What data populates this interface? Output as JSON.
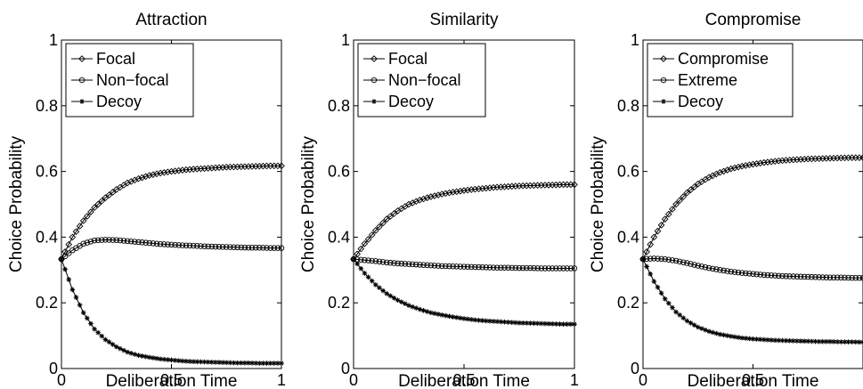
{
  "chart_data": [
    {
      "type": "line",
      "title": "Attraction",
      "xlabel": "Deliberation Time",
      "ylabel": "Choice Probability",
      "xlim": [
        0,
        1
      ],
      "ylim": [
        0,
        1
      ],
      "xticks": [
        "0",
        "0.5",
        "1"
      ],
      "yticks": [
        "0",
        "0.2",
        "0.4",
        "0.6",
        "0.8",
        "1"
      ],
      "legend_position": "top-left",
      "series": [
        {
          "name": "Focal",
          "marker": "diamond",
          "x": [
            0,
            0.05,
            0.1,
            0.15,
            0.2,
            0.25,
            0.3,
            0.35,
            0.4,
            0.45,
            0.5,
            0.55,
            0.6,
            0.65,
            0.7,
            0.75,
            0.8,
            0.85,
            0.9,
            0.95,
            1
          ],
          "y": [
            0.333,
            0.4,
            0.45,
            0.49,
            0.52,
            0.545,
            0.565,
            0.578,
            0.588,
            0.595,
            0.6,
            0.604,
            0.607,
            0.609,
            0.611,
            0.613,
            0.614,
            0.615,
            0.616,
            0.617,
            0.617
          ]
        },
        {
          "name": "Non−focal",
          "marker": "circle",
          "x": [
            0,
            0.05,
            0.1,
            0.15,
            0.2,
            0.25,
            0.3,
            0.35,
            0.4,
            0.45,
            0.5,
            0.55,
            0.6,
            0.65,
            0.7,
            0.75,
            0.8,
            0.85,
            0.9,
            0.95,
            1
          ],
          "y": [
            0.333,
            0.36,
            0.38,
            0.39,
            0.392,
            0.391,
            0.388,
            0.385,
            0.382,
            0.379,
            0.377,
            0.375,
            0.374,
            0.372,
            0.371,
            0.37,
            0.369,
            0.368,
            0.368,
            0.367,
            0.367
          ]
        },
        {
          "name": "Decoy",
          "marker": "star",
          "x": [
            0,
            0.05,
            0.1,
            0.15,
            0.2,
            0.25,
            0.3,
            0.35,
            0.4,
            0.45,
            0.5,
            0.55,
            0.6,
            0.65,
            0.7,
            0.75,
            0.8,
            0.85,
            0.9,
            0.95,
            1
          ],
          "y": [
            0.333,
            0.24,
            0.17,
            0.12,
            0.088,
            0.066,
            0.05,
            0.04,
            0.034,
            0.029,
            0.026,
            0.023,
            0.021,
            0.02,
            0.019,
            0.018,
            0.017,
            0.017,
            0.016,
            0.016,
            0.016
          ]
        }
      ]
    },
    {
      "type": "line",
      "title": "Similarity",
      "xlabel": "Deliberation Time",
      "ylabel": "Choice Probability",
      "xlim": [
        0,
        1
      ],
      "ylim": [
        0,
        1
      ],
      "xticks": [
        "0",
        "0.5",
        "1"
      ],
      "yticks": [
        "0",
        "0.2",
        "0.4",
        "0.6",
        "0.8",
        "1"
      ],
      "legend_position": "top-left",
      "series": [
        {
          "name": "Focal",
          "marker": "diamond",
          "x": [
            0,
            0.05,
            0.1,
            0.15,
            0.2,
            0.25,
            0.3,
            0.35,
            0.4,
            0.45,
            0.5,
            0.55,
            0.6,
            0.65,
            0.7,
            0.75,
            0.8,
            0.85,
            0.9,
            0.95,
            1
          ],
          "y": [
            0.333,
            0.38,
            0.42,
            0.455,
            0.48,
            0.5,
            0.513,
            0.523,
            0.531,
            0.537,
            0.542,
            0.546,
            0.549,
            0.552,
            0.554,
            0.556,
            0.557,
            0.558,
            0.559,
            0.56,
            0.56
          ]
        },
        {
          "name": "Non−focal",
          "marker": "circle",
          "x": [
            0,
            0.05,
            0.1,
            0.15,
            0.2,
            0.25,
            0.3,
            0.35,
            0.4,
            0.45,
            0.5,
            0.55,
            0.6,
            0.65,
            0.7,
            0.75,
            0.8,
            0.85,
            0.9,
            0.95,
            1
          ],
          "y": [
            0.333,
            0.33,
            0.327,
            0.323,
            0.32,
            0.318,
            0.316,
            0.314,
            0.312,
            0.311,
            0.31,
            0.309,
            0.308,
            0.307,
            0.307,
            0.306,
            0.306,
            0.305,
            0.305,
            0.305,
            0.305
          ]
        },
        {
          "name": "Decoy",
          "marker": "star",
          "x": [
            0,
            0.05,
            0.1,
            0.15,
            0.2,
            0.25,
            0.3,
            0.35,
            0.4,
            0.45,
            0.5,
            0.55,
            0.6,
            0.65,
            0.7,
            0.75,
            0.8,
            0.85,
            0.9,
            0.95,
            1
          ],
          "y": [
            0.333,
            0.29,
            0.255,
            0.228,
            0.208,
            0.192,
            0.18,
            0.17,
            0.163,
            0.157,
            0.152,
            0.148,
            0.145,
            0.143,
            0.141,
            0.139,
            0.138,
            0.137,
            0.136,
            0.135,
            0.135
          ]
        }
      ]
    },
    {
      "type": "line",
      "title": "Compromise",
      "xlabel": "Deliberation Time",
      "ylabel": "Choice Probability",
      "xlim": [
        0,
        1
      ],
      "ylim": [
        0,
        1
      ],
      "xticks": [
        "0",
        "0.5",
        ""
      ],
      "yticks": [
        "0",
        "0.2",
        "0.4",
        "0.6",
        "0.8",
        "1"
      ],
      "legend_position": "top-left",
      "series": [
        {
          "name": "Compromise",
          "marker": "diamond",
          "x": [
            0,
            0.05,
            0.1,
            0.15,
            0.2,
            0.25,
            0.3,
            0.35,
            0.4,
            0.45,
            0.5,
            0.55,
            0.6,
            0.65,
            0.7,
            0.75,
            0.8,
            0.85,
            0.9,
            0.95,
            1
          ],
          "y": [
            0.333,
            0.4,
            0.455,
            0.5,
            0.535,
            0.562,
            0.582,
            0.597,
            0.608,
            0.616,
            0.622,
            0.627,
            0.631,
            0.634,
            0.636,
            0.638,
            0.639,
            0.64,
            0.641,
            0.642,
            0.642
          ]
        },
        {
          "name": "Extreme",
          "marker": "circle",
          "x": [
            0,
            0.05,
            0.1,
            0.15,
            0.2,
            0.25,
            0.3,
            0.35,
            0.4,
            0.45,
            0.5,
            0.55,
            0.6,
            0.65,
            0.7,
            0.75,
            0.8,
            0.85,
            0.9,
            0.95,
            1
          ],
          "y": [
            0.333,
            0.335,
            0.333,
            0.328,
            0.321,
            0.313,
            0.306,
            0.3,
            0.295,
            0.291,
            0.288,
            0.285,
            0.283,
            0.281,
            0.28,
            0.279,
            0.278,
            0.277,
            0.277,
            0.276,
            0.276
          ]
        },
        {
          "name": "Decoy",
          "marker": "star",
          "x": [
            0,
            0.05,
            0.1,
            0.15,
            0.2,
            0.25,
            0.3,
            0.35,
            0.4,
            0.45,
            0.5,
            0.55,
            0.6,
            0.65,
            0.7,
            0.75,
            0.8,
            0.85,
            0.9,
            0.95,
            1
          ],
          "y": [
            0.333,
            0.265,
            0.212,
            0.172,
            0.145,
            0.126,
            0.113,
            0.104,
            0.098,
            0.093,
            0.09,
            0.088,
            0.086,
            0.085,
            0.084,
            0.083,
            0.082,
            0.082,
            0.081,
            0.081,
            0.08
          ]
        }
      ]
    }
  ]
}
